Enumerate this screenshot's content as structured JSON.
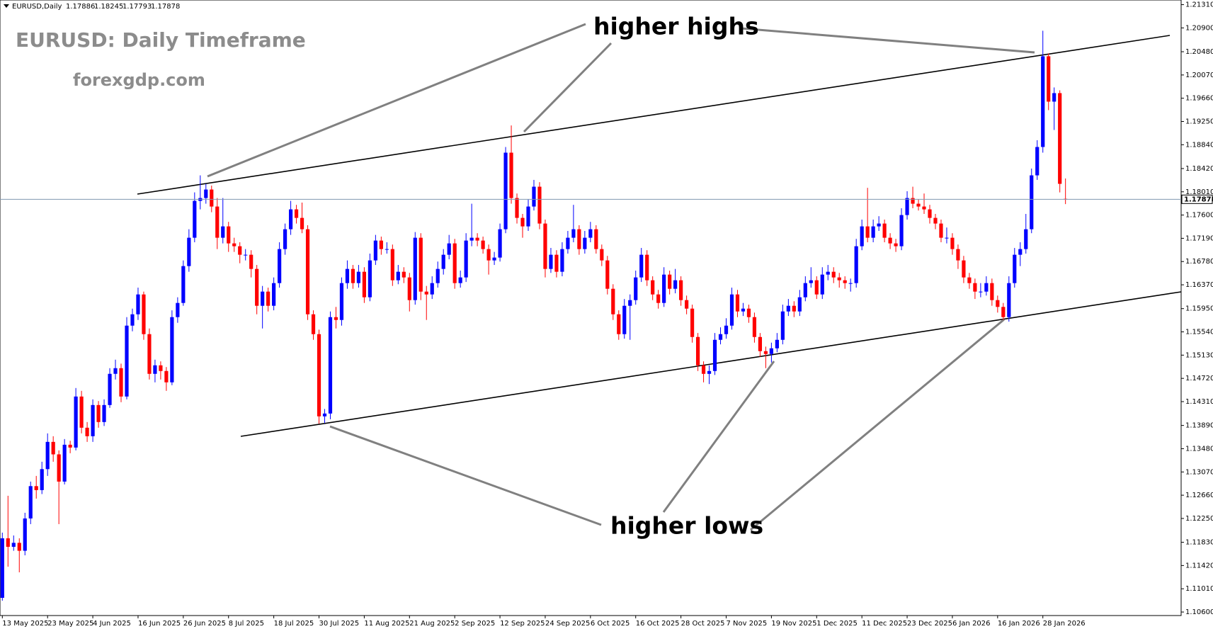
{
  "chart_data": {
    "type": "candlestick",
    "symbol": "EURUSD,Daily",
    "title": "EURUSD: Daily Timeframe",
    "subtitle": "forexgdp.com",
    "annotations": [
      "higher highs",
      "higher lows"
    ],
    "up_color": "#0000ff",
    "down_color": "#ff0000",
    "grid": false,
    "ylim": [
      1.10538,
      1.21392
    ],
    "yticks": [
      {
        "value": 1.106,
        "label": "1.10600"
      },
      {
        "value": 1.1101,
        "label": "1.11010"
      },
      {
        "value": 1.1142,
        "label": "1.11420"
      },
      {
        "value": 1.1183,
        "label": "1.11830"
      },
      {
        "value": 1.1225,
        "label": "1.12250"
      },
      {
        "value": 1.1266,
        "label": "1.12660"
      },
      {
        "value": 1.1307,
        "label": "1.13070"
      },
      {
        "value": 1.1348,
        "label": "1.13480"
      },
      {
        "value": 1.1389,
        "label": "1.13890"
      },
      {
        "value": 1.1431,
        "label": "1.14310"
      },
      {
        "value": 1.1472,
        "label": "1.14720"
      },
      {
        "value": 1.1513,
        "label": "1.15130"
      },
      {
        "value": 1.1554,
        "label": "1.15540"
      },
      {
        "value": 1.1595,
        "label": "1.15950"
      },
      {
        "value": 1.1637,
        "label": "1.16370"
      },
      {
        "value": 1.1678,
        "label": "1.16780"
      },
      {
        "value": 1.1719,
        "label": "1.17190"
      },
      {
        "value": 1.176,
        "label": "1.17600"
      },
      {
        "value": 1.1801,
        "label": "1.18010"
      },
      {
        "value": 1.1842,
        "label": "1.18420"
      },
      {
        "value": 1.1884,
        "label": "1.18840"
      },
      {
        "value": 1.1925,
        "label": "1.19250"
      },
      {
        "value": 1.1966,
        "label": "1.19660"
      },
      {
        "value": 1.2007,
        "label": "1.20070"
      },
      {
        "value": 1.2048,
        "label": "1.20480"
      },
      {
        "value": 1.209,
        "label": "1.20900"
      },
      {
        "value": 1.2131,
        "label": "1.21310"
      }
    ],
    "categories": [
      "13 May 2025",
      null,
      null,
      null,
      null,
      null,
      null,
      null,
      "23 May 2025",
      null,
      null,
      null,
      null,
      null,
      null,
      null,
      "4 Jun 2025",
      null,
      null,
      null,
      null,
      null,
      null,
      null,
      "16 Jun 2025",
      null,
      null,
      null,
      null,
      null,
      null,
      null,
      "26 Jun 2025",
      null,
      null,
      null,
      null,
      null,
      null,
      null,
      "8 Jul 2025",
      null,
      null,
      null,
      null,
      null,
      null,
      null,
      "18 Jul 2025",
      null,
      null,
      null,
      null,
      null,
      null,
      null,
      "30 Jul 2025",
      null,
      null,
      null,
      null,
      null,
      null,
      null,
      "11 Aug 2025",
      null,
      null,
      null,
      null,
      null,
      null,
      null,
      "21 Aug 2025",
      null,
      null,
      null,
      null,
      null,
      null,
      null,
      "2 Sep 2025",
      null,
      null,
      null,
      null,
      null,
      null,
      null,
      "12 Sep 2025",
      null,
      null,
      null,
      null,
      null,
      null,
      null,
      "24 Sep 2025",
      null,
      null,
      null,
      null,
      null,
      null,
      null,
      "6 Oct 2025",
      null,
      null,
      null,
      null,
      null,
      null,
      null,
      "16 Oct 2025",
      null,
      null,
      null,
      null,
      null,
      null,
      null,
      "28 Oct 2025",
      null,
      null,
      null,
      null,
      null,
      null,
      null,
      "7 Nov 2025",
      null,
      null,
      null,
      null,
      null,
      null,
      null,
      "19 Nov 2025",
      null,
      null,
      null,
      null,
      null,
      null,
      null,
      "1 Dec 2025",
      null,
      null,
      null,
      null,
      null,
      null,
      null,
      "11 Dec 2025",
      null,
      null,
      null,
      null,
      null,
      null,
      null,
      "23 Dec 2025",
      null,
      null,
      null,
      null,
      null,
      null,
      null,
      "6 Jan 2026",
      null,
      null,
      null,
      null,
      null,
      null,
      null,
      "16 Jan 2026",
      null,
      null,
      null,
      null,
      null,
      null,
      null,
      "28 Jan 2026",
      null,
      null,
      null,
      null
    ],
    "candles": [
      [
        1.1085,
        1.12,
        1.108,
        1.119
      ],
      [
        1.119,
        1.1265,
        1.114,
        1.1175
      ],
      [
        1.1175,
        1.1195,
        1.1168,
        1.1182
      ],
      [
        1.1182,
        1.119,
        1.113,
        1.1168
      ],
      [
        1.1168,
        1.1235,
        1.116,
        1.1225
      ],
      [
        1.1225,
        1.129,
        1.1215,
        1.1282
      ],
      [
        1.1282,
        1.13,
        1.126,
        1.1275
      ],
      [
        1.1275,
        1.1325,
        1.1268,
        1.1312
      ],
      [
        1.1312,
        1.1375,
        1.13,
        1.136
      ],
      [
        1.136,
        1.137,
        1.1325,
        1.1338
      ],
      [
        1.1338,
        1.1345,
        1.1215,
        1.129
      ],
      [
        1.129,
        1.1365,
        1.1285,
        1.1355
      ],
      [
        1.1355,
        1.1362,
        1.134,
        1.135
      ],
      [
        1.135,
        1.1455,
        1.1345,
        1.144
      ],
      [
        1.144,
        1.145,
        1.1375,
        1.1385
      ],
      [
        1.1385,
        1.1395,
        1.136,
        1.137
      ],
      [
        1.137,
        1.1435,
        1.136,
        1.1425
      ],
      [
        1.1425,
        1.1432,
        1.1385,
        1.1395
      ],
      [
        1.1395,
        1.1435,
        1.1388,
        1.1425
      ],
      [
        1.1425,
        1.149,
        1.142,
        1.148
      ],
      [
        1.148,
        1.1505,
        1.147,
        1.149
      ],
      [
        1.149,
        1.1498,
        1.143,
        1.144
      ],
      [
        1.144,
        1.158,
        1.1435,
        1.1565
      ],
      [
        1.1565,
        1.1595,
        1.1555,
        1.1585
      ],
      [
        1.1585,
        1.1632,
        1.1575,
        1.162
      ],
      [
        1.162,
        1.1625,
        1.154,
        1.155
      ],
      [
        1.155,
        1.156,
        1.147,
        1.148
      ],
      [
        1.148,
        1.1505,
        1.1465,
        1.1495
      ],
      [
        1.1495,
        1.1502,
        1.147,
        1.1485
      ],
      [
        1.1485,
        1.1492,
        1.145,
        1.1465
      ],
      [
        1.1465,
        1.1592,
        1.146,
        1.158
      ],
      [
        1.158,
        1.1615,
        1.157,
        1.1605
      ],
      [
        1.1605,
        1.168,
        1.16,
        1.167
      ],
      [
        1.167,
        1.1735,
        1.166,
        1.172
      ],
      [
        1.172,
        1.18,
        1.1712,
        1.1785
      ],
      [
        1.1785,
        1.183,
        1.177,
        1.179
      ],
      [
        1.179,
        1.1815,
        1.178,
        1.1805
      ],
      [
        1.1805,
        1.1812,
        1.1765,
        1.1775
      ],
      [
        1.1775,
        1.179,
        1.17,
        1.172
      ],
      [
        1.172,
        1.179,
        1.171,
        1.174
      ],
      [
        1.174,
        1.1748,
        1.1695,
        1.171
      ],
      [
        1.171,
        1.172,
        1.1695,
        1.1705
      ],
      [
        1.1705,
        1.1712,
        1.1675,
        1.169
      ],
      [
        1.169,
        1.17,
        1.168,
        1.169
      ],
      [
        1.169,
        1.1698,
        1.165,
        1.1665
      ],
      [
        1.1665,
        1.1672,
        1.1585,
        1.16
      ],
      [
        1.16,
        1.1635,
        1.156,
        1.1625
      ],
      [
        1.1625,
        1.1632,
        1.159,
        1.16
      ],
      [
        1.16,
        1.165,
        1.1592,
        1.164
      ],
      [
        1.164,
        1.1712,
        1.1632,
        1.17
      ],
      [
        1.17,
        1.1745,
        1.169,
        1.1735
      ],
      [
        1.1735,
        1.1785,
        1.1725,
        1.177
      ],
      [
        1.177,
        1.1778,
        1.1745,
        1.1755
      ],
      [
        1.1755,
        1.1782,
        1.1728,
        1.1735
      ],
      [
        1.1735,
        1.1742,
        1.1575,
        1.1585
      ],
      [
        1.1585,
        1.1592,
        1.154,
        1.155
      ],
      [
        1.155,
        1.1558,
        1.1392,
        1.1405
      ],
      [
        1.1405,
        1.1418,
        1.1393,
        1.141
      ],
      [
        1.141,
        1.159,
        1.14,
        1.158
      ],
      [
        1.158,
        1.1598,
        1.156,
        1.1575
      ],
      [
        1.1575,
        1.165,
        1.1565,
        1.164
      ],
      [
        1.164,
        1.168,
        1.163,
        1.1665
      ],
      [
        1.1665,
        1.1672,
        1.163,
        1.164
      ],
      [
        1.164,
        1.1672,
        1.1632,
        1.166
      ],
      [
        1.166,
        1.1668,
        1.1605,
        1.1615
      ],
      [
        1.1615,
        1.1692,
        1.1608,
        1.168
      ],
      [
        1.168,
        1.1725,
        1.1672,
        1.1715
      ],
      [
        1.1715,
        1.1722,
        1.169,
        1.17
      ],
      [
        1.17,
        1.1712,
        1.1692,
        1.17
      ],
      [
        1.17,
        1.1708,
        1.1635,
        1.1645
      ],
      [
        1.1645,
        1.1672,
        1.1638,
        1.166
      ],
      [
        1.166,
        1.1668,
        1.164,
        1.165
      ],
      [
        1.165,
        1.1658,
        1.159,
        1.161
      ],
      [
        1.161,
        1.173,
        1.1602,
        1.172
      ],
      [
        1.172,
        1.1728,
        1.161,
        1.1625
      ],
      [
        1.1625,
        1.1635,
        1.1575,
        1.162
      ],
      [
        1.162,
        1.1652,
        1.1612,
        1.164
      ],
      [
        1.164,
        1.1678,
        1.1632,
        1.1665
      ],
      [
        1.1665,
        1.17,
        1.1655,
        1.169
      ],
      [
        1.169,
        1.1725,
        1.1682,
        1.171
      ],
      [
        1.171,
        1.1718,
        1.163,
        1.164
      ],
      [
        1.164,
        1.1662,
        1.1632,
        1.165
      ],
      [
        1.165,
        1.1728,
        1.1642,
        1.1715
      ],
      [
        1.1715,
        1.178,
        1.1705,
        1.172
      ],
      [
        1.172,
        1.1728,
        1.1705,
        1.1715
      ],
      [
        1.1715,
        1.1722,
        1.1692,
        1.17
      ],
      [
        1.17,
        1.1708,
        1.1655,
        1.168
      ],
      [
        1.168,
        1.1695,
        1.1672,
        1.1685
      ],
      [
        1.1685,
        1.1745,
        1.1678,
        1.1735
      ],
      [
        1.1735,
        1.188,
        1.1728,
        1.187
      ],
      [
        1.187,
        1.1918,
        1.178,
        1.179
      ],
      [
        1.179,
        1.1798,
        1.1745,
        1.1755
      ],
      [
        1.1755,
        1.1762,
        1.172,
        1.174
      ],
      [
        1.174,
        1.1788,
        1.1732,
        1.1775
      ],
      [
        1.1775,
        1.1822,
        1.1768,
        1.181
      ],
      [
        1.181,
        1.1818,
        1.1735,
        1.1745
      ],
      [
        1.1745,
        1.1752,
        1.165,
        1.1665
      ],
      [
        1.1665,
        1.1702,
        1.1658,
        1.169
      ],
      [
        1.169,
        1.1698,
        1.165,
        1.166
      ],
      [
        1.166,
        1.1712,
        1.1652,
        1.17
      ],
      [
        1.17,
        1.1732,
        1.1692,
        1.172
      ],
      [
        1.172,
        1.1778,
        1.1712,
        1.1735
      ],
      [
        1.1735,
        1.1742,
        1.169,
        1.17
      ],
      [
        1.17,
        1.1732,
        1.1692,
        1.172
      ],
      [
        1.172,
        1.1748,
        1.1712,
        1.1735
      ],
      [
        1.1735,
        1.1742,
        1.1692,
        1.17
      ],
      [
        1.17,
        1.1708,
        1.167,
        1.168
      ],
      [
        1.168,
        1.1688,
        1.162,
        1.163
      ],
      [
        1.163,
        1.1638,
        1.1575,
        1.1585
      ],
      [
        1.1585,
        1.1592,
        1.154,
        1.155
      ],
      [
        1.155,
        1.1612,
        1.1542,
        1.16
      ],
      [
        1.16,
        1.162,
        1.154,
        1.161
      ],
      [
        1.161,
        1.1662,
        1.1602,
        1.165
      ],
      [
        1.165,
        1.1702,
        1.1642,
        1.169
      ],
      [
        1.169,
        1.1698,
        1.1635,
        1.1645
      ],
      [
        1.1645,
        1.1652,
        1.161,
        1.162
      ],
      [
        1.162,
        1.1628,
        1.1595,
        1.1605
      ],
      [
        1.1605,
        1.1668,
        1.1598,
        1.1655
      ],
      [
        1.1655,
        1.1662,
        1.162,
        1.163
      ],
      [
        1.163,
        1.1665,
        1.1622,
        1.1645
      ],
      [
        1.1645,
        1.1652,
        1.16,
        1.161
      ],
      [
        1.161,
        1.1618,
        1.1585,
        1.1595
      ],
      [
        1.1595,
        1.1602,
        1.1535,
        1.1545
      ],
      [
        1.1545,
        1.1552,
        1.1485,
        1.1495
      ],
      [
        1.1495,
        1.1502,
        1.1465,
        1.148
      ],
      [
        1.148,
        1.1495,
        1.1462,
        1.1485
      ],
      [
        1.1485,
        1.1552,
        1.1478,
        1.154
      ],
      [
        1.154,
        1.1562,
        1.1532,
        1.155
      ],
      [
        1.155,
        1.1578,
        1.1542,
        1.1565
      ],
      [
        1.1565,
        1.1632,
        1.1558,
        1.162
      ],
      [
        1.162,
        1.1628,
        1.158,
        1.159
      ],
      [
        1.159,
        1.1605,
        1.1582,
        1.1595
      ],
      [
        1.1595,
        1.1602,
        1.157,
        1.158
      ],
      [
        1.158,
        1.1588,
        1.1535,
        1.1545
      ],
      [
        1.1545,
        1.1552,
        1.151,
        1.152
      ],
      [
        1.152,
        1.1528,
        1.149,
        1.1515
      ],
      [
        1.1515,
        1.1535,
        1.15,
        1.1525
      ],
      [
        1.1525,
        1.1552,
        1.1518,
        1.154
      ],
      [
        1.154,
        1.1602,
        1.1532,
        1.159
      ],
      [
        1.159,
        1.1612,
        1.1582,
        1.16
      ],
      [
        1.16,
        1.1608,
        1.158,
        1.159
      ],
      [
        1.159,
        1.1628,
        1.1582,
        1.1615
      ],
      [
        1.1615,
        1.1652,
        1.1608,
        1.164
      ],
      [
        1.164,
        1.1668,
        1.1632,
        1.1645
      ],
      [
        1.1645,
        1.1652,
        1.1612,
        1.162
      ],
      [
        1.162,
        1.1668,
        1.1612,
        1.1655
      ],
      [
        1.1655,
        1.1672,
        1.1645,
        1.166
      ],
      [
        1.166,
        1.1668,
        1.164,
        1.165
      ],
      [
        1.165,
        1.1658,
        1.1632,
        1.1645
      ],
      [
        1.1645,
        1.1652,
        1.163,
        1.164
      ],
      [
        1.164,
        1.1648,
        1.1625,
        1.164
      ],
      [
        1.164,
        1.1718,
        1.1632,
        1.1705
      ],
      [
        1.1705,
        1.1752,
        1.1698,
        1.174
      ],
      [
        1.174,
        1.1808,
        1.1712,
        1.172
      ],
      [
        1.172,
        1.1752,
        1.1712,
        1.174
      ],
      [
        1.174,
        1.1758,
        1.1732,
        1.1745
      ],
      [
        1.1745,
        1.1752,
        1.1712,
        1.172
      ],
      [
        1.172,
        1.1728,
        1.17,
        1.171
      ],
      [
        1.171,
        1.1718,
        1.1695,
        1.1705
      ],
      [
        1.1705,
        1.1772,
        1.1698,
        1.176
      ],
      [
        1.176,
        1.1802,
        1.1752,
        1.179
      ],
      [
        1.179,
        1.181,
        1.1772,
        1.178
      ],
      [
        1.178,
        1.1788,
        1.1768,
        1.1775
      ],
      [
        1.1775,
        1.1798,
        1.1762,
        1.177
      ],
      [
        1.177,
        1.1778,
        1.1745,
        1.1755
      ],
      [
        1.1755,
        1.1762,
        1.1735,
        1.1745
      ],
      [
        1.1745,
        1.1752,
        1.1712,
        1.172
      ],
      [
        1.172,
        1.1738,
        1.171,
        1.172
      ],
      [
        1.172,
        1.1728,
        1.169,
        1.17
      ],
      [
        1.17,
        1.1708,
        1.1665,
        1.168
      ],
      [
        1.168,
        1.1688,
        1.164,
        1.165
      ],
      [
        1.165,
        1.1658,
        1.163,
        1.164
      ],
      [
        1.164,
        1.1648,
        1.1612,
        1.1625
      ],
      [
        1.1625,
        1.164,
        1.1615,
        1.1625
      ],
      [
        1.1625,
        1.1652,
        1.1618,
        1.164
      ],
      [
        1.164,
        1.1648,
        1.16,
        1.161
      ],
      [
        1.161,
        1.1618,
        1.1588,
        1.1598
      ],
      [
        1.1598,
        1.1605,
        1.1575,
        1.158
      ],
      [
        1.158,
        1.1652,
        1.1572,
        1.164
      ],
      [
        1.164,
        1.1702,
        1.1632,
        1.169
      ],
      [
        1.169,
        1.1712,
        1.167,
        1.17
      ],
      [
        1.17,
        1.1762,
        1.1692,
        1.1735
      ],
      [
        1.1735,
        1.1842,
        1.1728,
        1.183
      ],
      [
        1.183,
        1.1892,
        1.1822,
        1.188
      ],
      [
        1.188,
        1.2085,
        1.187,
        1.204
      ],
      [
        1.204,
        1.2045,
        1.1945,
        1.196
      ],
      [
        1.196,
        1.1985,
        1.191,
        1.1975
      ],
      [
        1.1975,
        1.198,
        1.18,
        1.1815
      ],
      [
        1.17886,
        1.18245,
        1.17793,
        1.17878
      ]
    ]
  }
}
